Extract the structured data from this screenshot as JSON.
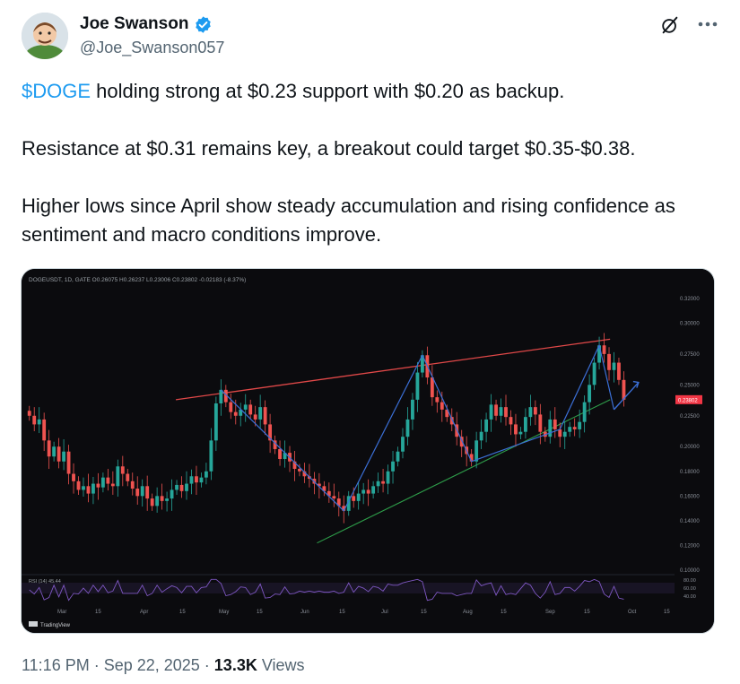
{
  "author": {
    "name": "Joe Swanson",
    "handle": "@Joe_Swanson057",
    "verified": true,
    "verified_color": "#1d9bf0"
  },
  "icons": {
    "grok": "grok-slash-circle-icon",
    "more": "more-horizontal-icon",
    "verified": "verified-badge-icon"
  },
  "tweet": {
    "cashtag": "$DOGE",
    "line1_rest": " holding strong at $0.23 support with $0.20 as backup.",
    "paragraph2": "Resistance at $0.31 remains key, a breakout could target $0.35-$0.38.",
    "paragraph3": "Higher lows since April show steady accumulation and rising confidence as sentiment and macro conditions improve."
  },
  "chart": {
    "header": "DOGEUSDT, 1D, GATE  O0.26075 H0.26237 L0.23006 C0.23802 -0.02183 (-8.37%)",
    "price_labels": [
      "0.32000",
      "0.30000",
      "0.27500",
      "0.25000",
      "0.22500",
      "0.20000",
      "0.18000",
      "0.16000",
      "0.14000",
      "0.12000",
      "0.10000"
    ],
    "current_price": "0.23802",
    "current_price_color": "#f23645",
    "rsi_label": "RSI (14)  45.44",
    "rsi_levels": [
      "80.00",
      "60.00",
      "40.00"
    ],
    "x_labels": [
      "Mar",
      "15",
      "Apr",
      "15",
      "May",
      "15",
      "Jun",
      "15",
      "Jul",
      "15",
      "Aug",
      "15",
      "Sep",
      "15",
      "Oct",
      "15"
    ],
    "watermark": "TradingView",
    "colors": {
      "up": "#26a69a",
      "down": "#ef5350",
      "resistance": "#e04848",
      "support": "#2e9e4a",
      "pattern": "#3b6fd6",
      "rsi": "#7e57c2"
    }
  },
  "chart_data": {
    "type": "candlestick",
    "series": [
      {
        "name": "DOGEUSDT",
        "values": [
          0.225,
          0.218,
          0.222,
          0.205,
          0.192,
          0.2,
          0.188,
          0.196,
          0.178,
          0.172,
          0.165,
          0.168,
          0.162,
          0.17,
          0.167,
          0.175,
          0.17,
          0.168,
          0.184,
          0.178,
          0.172,
          0.166,
          0.16,
          0.168,
          0.158,
          0.152,
          0.16,
          0.156,
          0.158,
          0.165,
          0.169,
          0.164,
          0.17,
          0.176,
          0.171,
          0.175,
          0.18,
          0.205,
          0.235,
          0.246,
          0.236,
          0.228,
          0.225,
          0.23,
          0.234,
          0.226,
          0.222,
          0.232,
          0.218,
          0.205,
          0.198,
          0.19,
          0.195,
          0.188,
          0.182,
          0.18,
          0.176,
          0.174,
          0.17,
          0.168,
          0.164,
          0.16,
          0.158,
          0.152,
          0.148,
          0.16,
          0.156,
          0.162,
          0.165,
          0.162,
          0.168,
          0.172,
          0.17,
          0.18,
          0.188,
          0.196,
          0.208,
          0.222,
          0.238,
          0.26,
          0.274,
          0.256,
          0.24,
          0.236,
          0.23,
          0.224,
          0.218,
          0.208,
          0.2,
          0.194,
          0.188,
          0.205,
          0.212,
          0.222,
          0.234,
          0.225,
          0.232,
          0.224,
          0.218,
          0.21,
          0.212,
          0.224,
          0.232,
          0.226,
          0.212,
          0.208,
          0.222,
          0.214,
          0.208,
          0.212,
          0.216,
          0.214,
          0.22,
          0.236,
          0.25,
          0.268,
          0.282,
          0.275,
          0.262,
          0.268,
          0.254,
          0.238
        ]
      }
    ],
    "resistance_line": {
      "from": [
        "Apr 18",
        0.238
      ],
      "to": [
        "Sep 28",
        0.287
      ]
    },
    "support_line": {
      "from": [
        "Jun 10",
        0.122
      ],
      "to": [
        "Sep 28",
        0.238
      ]
    },
    "current_price": 0.23802,
    "ylim": [
      0.1,
      0.325
    ],
    "x_ticks": [
      "Mar",
      "15",
      "Apr",
      "15",
      "May",
      "15",
      "Jun",
      "15",
      "Jul",
      "15",
      "Aug",
      "15",
      "Sep",
      "15",
      "Oct",
      "15"
    ],
    "grid": false
  },
  "meta": {
    "time": "11:16 PM · Sep 22, 2025 · ",
    "views_count": "13.3K",
    "views_label": " Views"
  }
}
